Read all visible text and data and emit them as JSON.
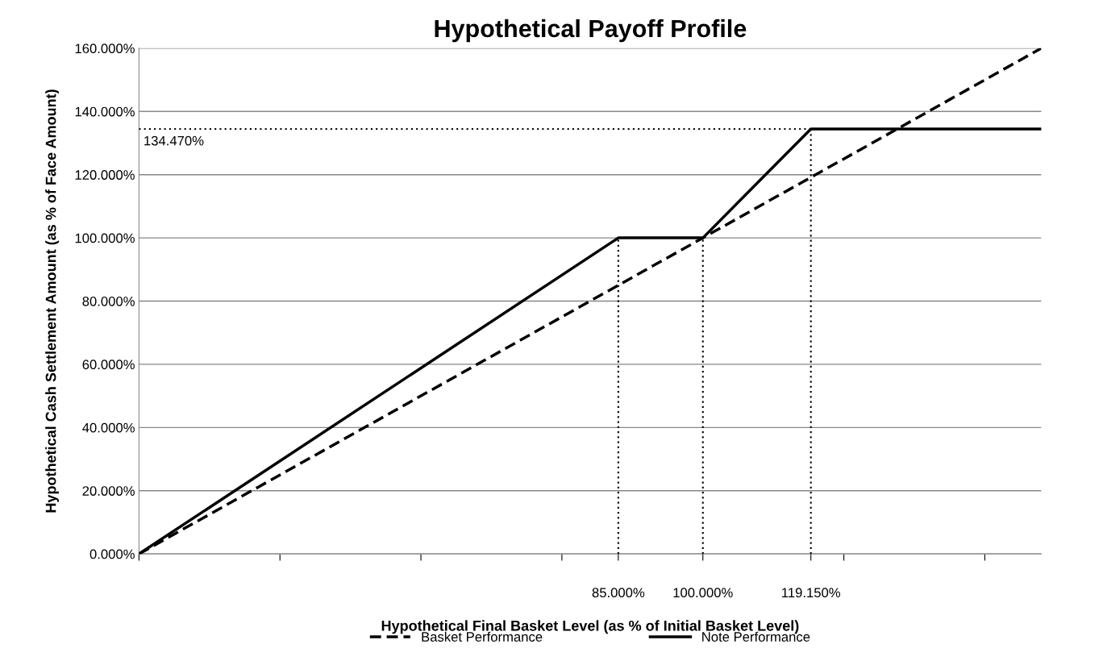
{
  "chart_data": {
    "type": "line",
    "title": "Hypothetical Payoff Profile",
    "xlabel": "Hypothetical Final Basket Level (as % of Initial Basket Level)",
    "ylabel": "Hypothetical Cash Settlement Amount (as % of Face Amount)",
    "xlim": [
      0,
      160
    ],
    "ylim": [
      0,
      160
    ],
    "xticks": [
      {
        "value": 0,
        "label": null
      },
      {
        "value": 25,
        "label": null
      },
      {
        "value": 50,
        "label": null
      },
      {
        "value": 75,
        "label": null
      },
      {
        "value": 85,
        "label": "85.000%"
      },
      {
        "value": 100,
        "label": "100.000%"
      },
      {
        "value": 119.15,
        "label": "119.150%"
      },
      {
        "value": 125,
        "label": null
      },
      {
        "value": 150,
        "label": null
      }
    ],
    "yticks": [
      {
        "value": 0,
        "label": "0.000%"
      },
      {
        "value": 20,
        "label": "20.000%"
      },
      {
        "value": 40,
        "label": "40.000%"
      },
      {
        "value": 60,
        "label": "60.000%"
      },
      {
        "value": 80,
        "label": "80.000%"
      },
      {
        "value": 100,
        "label": "100.000%"
      },
      {
        "value": 120,
        "label": "120.000%"
      },
      {
        "value": 140,
        "label": "140.000%"
      },
      {
        "value": 160,
        "label": "160.000%"
      }
    ],
    "grid": "y",
    "legend": "bottom",
    "marker": "none",
    "series": [
      {
        "name": "Basket Performance",
        "color": "#000000",
        "line_style": "dashed",
        "x": [
          0,
          160
        ],
        "values": [
          0,
          160
        ]
      },
      {
        "name": "Note Performance",
        "color": "#000000",
        "line_style": "solid",
        "x": [
          0,
          85,
          100,
          119.15,
          160
        ],
        "values": [
          0,
          100,
          100,
          134.47,
          134.47
        ]
      },
      {
        "color": "#000000",
        "line_style": "dotted",
        "x": [
          85,
          85
        ],
        "values": [
          0,
          100
        ]
      },
      {
        "color": "#000000",
        "line_style": "dotted",
        "x": [
          100,
          100
        ],
        "values": [
          0,
          100
        ]
      },
      {
        "color": "#000000",
        "line_style": "dotted",
        "x": [
          119.15,
          119.15
        ],
        "values": [
          0,
          134.47
        ]
      },
      {
        "color": "#000000",
        "line_style": "dotted",
        "x": [
          0,
          119.15
        ],
        "values": [
          134.47,
          134.47
        ]
      }
    ],
    "annotations": [
      {
        "text": "134.470%",
        "x": 0,
        "y": 134.47
      }
    ]
  }
}
